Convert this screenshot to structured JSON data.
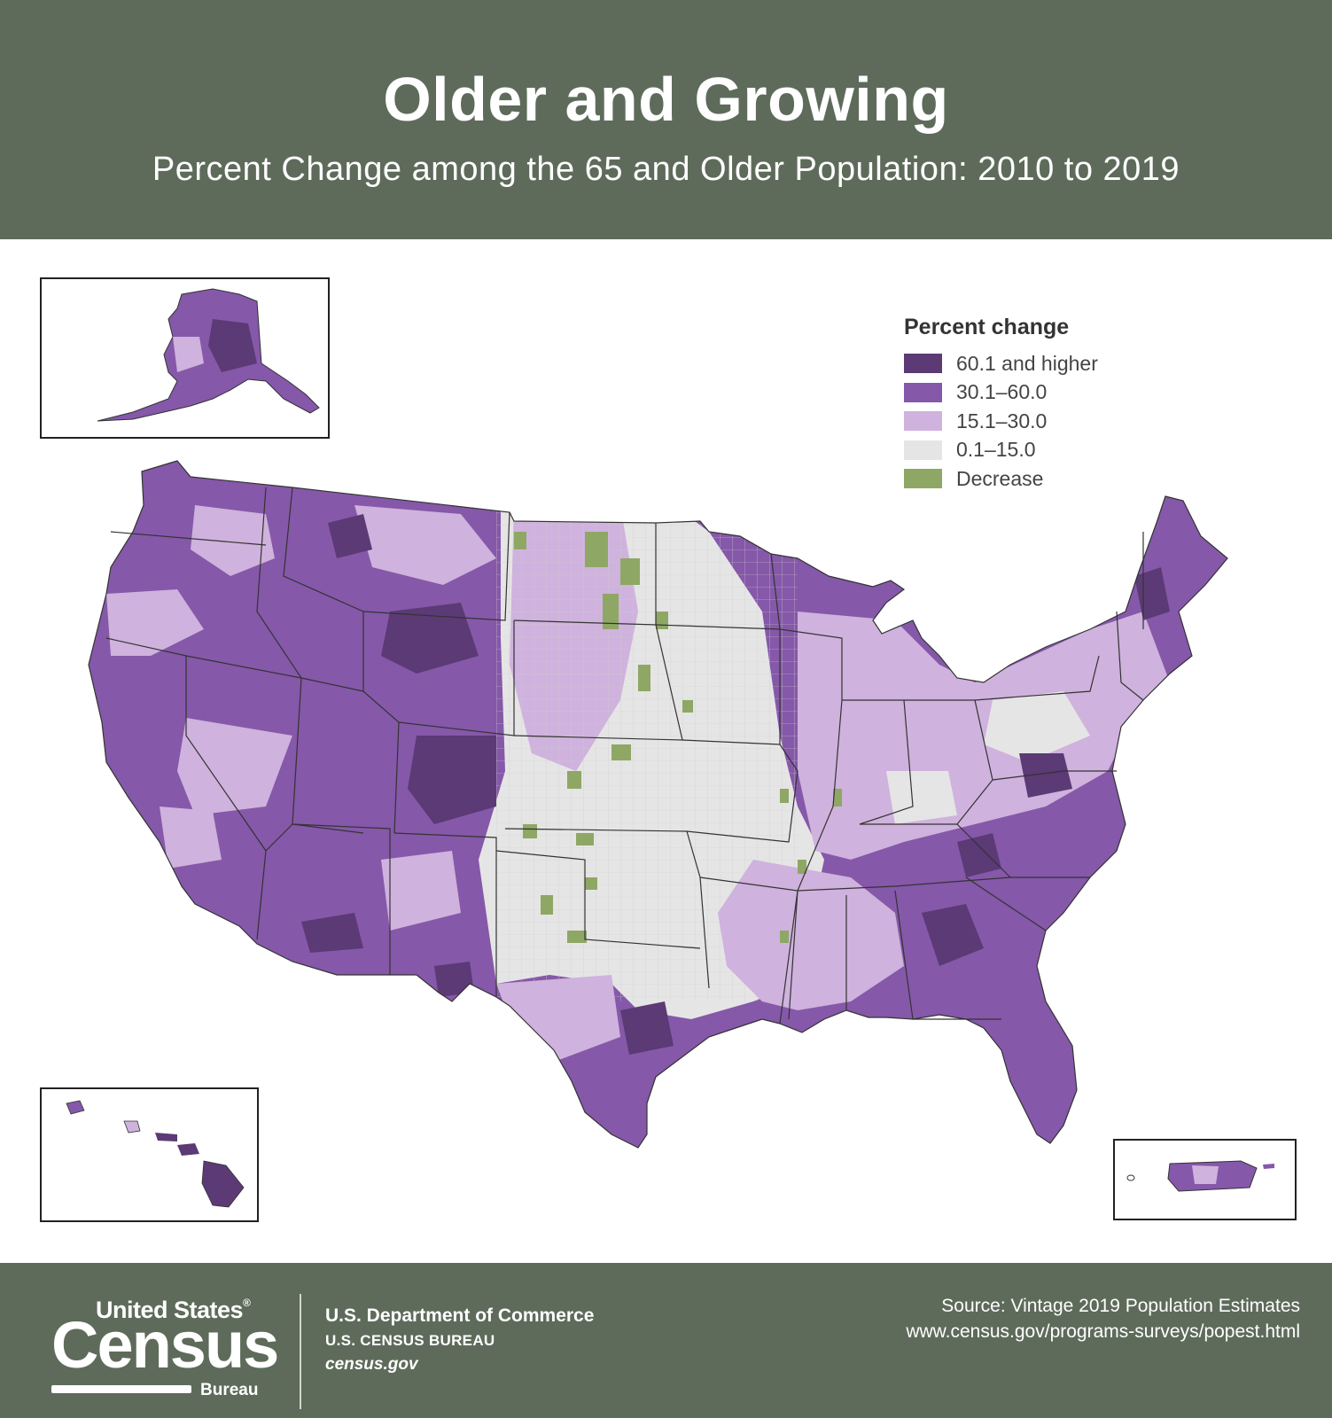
{
  "header": {
    "title": "Older and Growing",
    "subtitle": "Percent Change among the 65 and Older Population: 2010 to 2019"
  },
  "legend": {
    "title": "Percent change",
    "items": [
      {
        "label": "60.1 and higher",
        "color": "#5b3a75"
      },
      {
        "label": "30.1–60.0",
        "color": "#8558a9"
      },
      {
        "label": "15.1–30.0",
        "color": "#cfb2dd"
      },
      {
        "label": "0.1–15.0",
        "color": "#e5e5e5"
      },
      {
        "label": "Decrease",
        "color": "#8fa765"
      }
    ]
  },
  "insets": [
    "Alaska",
    "Hawaii",
    "Puerto Rico"
  ],
  "footer": {
    "logo_top": "United States",
    "logo_reg": "®",
    "logo_main": "Census",
    "logo_sub": "Bureau",
    "dept_line1": "U.S. Department of Commerce",
    "dept_line2": "U.S. CENSUS BUREAU",
    "dept_line3": "census.gov",
    "source_line1": "Source: Vintage 2019 Population Estimates",
    "source_line2": "www.census.gov/programs-surveys/popest.html"
  }
}
